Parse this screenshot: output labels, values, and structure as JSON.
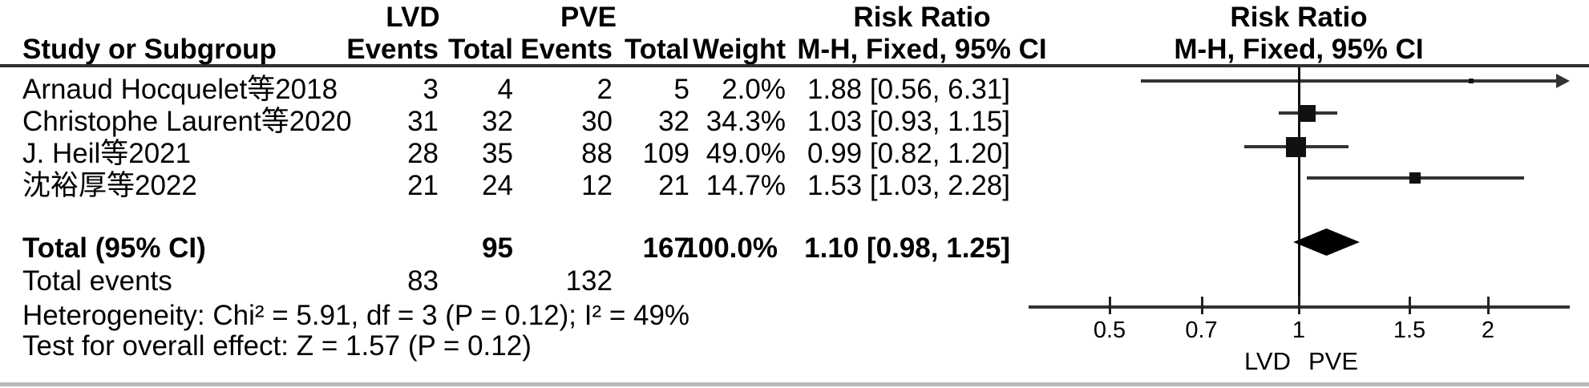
{
  "colors": {
    "text": "#000000",
    "line": "#333333",
    "marker": "#111111",
    "diamond": "#000000",
    "header_rule": "#2f2f2f",
    "bottom_border": "#b9b9b9"
  },
  "header": {
    "group1": "LVD",
    "group2": "PVE",
    "study_col": "Study or Subgroup",
    "events_col": "Events",
    "total_col": "Total",
    "events_col2": "Events",
    "total_col2": "Total",
    "weight_col": "Weight",
    "rr_title": "Risk Ratio",
    "rr_subtitle": "M-H, Fixed, 95% CI",
    "plot_title": "Risk Ratio",
    "plot_subtitle": "M-H, Fixed, 95% CI"
  },
  "footer": {
    "total_label": "Total (95% CI)",
    "total_events_label": "Total events",
    "heterogeneity": "Heterogeneity: Chi² = 5.91, df = 3 (P = 0.12); I² = 49%",
    "overall_effect": "Test for overall effect: Z = 1.57 (P = 0.12)"
  },
  "chart_data": {
    "type": "forest",
    "measure": "Risk Ratio",
    "method": "M-H, Fixed, 95% CI",
    "x_scale": "log",
    "x_ticks": [
      0.5,
      0.7,
      1,
      1.5,
      2
    ],
    "x_range": [
      0.372,
      2.7
    ],
    "favours_left": "LVD",
    "favours_right": "PVE",
    "studies": [
      {
        "study": "Arnaud Hocquelet等2018",
        "e1": "3",
        "t1": "4",
        "e2": "2",
        "t2": "5",
        "weight": "2.0%",
        "rr_text": "1.88 [0.56, 6.31]",
        "rr": 1.88,
        "lo": 0.56,
        "hi": 6.31,
        "wpct": 2.0
      },
      {
        "study": "Christophe Laurent等2020",
        "e1": "31",
        "t1": "32",
        "e2": "30",
        "t2": "32",
        "weight": "34.3%",
        "rr_text": "1.03 [0.93, 1.15]",
        "rr": 1.03,
        "lo": 0.93,
        "hi": 1.15,
        "wpct": 34.3
      },
      {
        "study": "J. Heil等2021",
        "e1": "28",
        "t1": "35",
        "e2": "88",
        "t2": "109",
        "weight": "49.0%",
        "rr_text": "0.99 [0.82, 1.20]",
        "rr": 0.99,
        "lo": 0.82,
        "hi": 1.2,
        "wpct": 49.0
      },
      {
        "study": "沈裕厚等2022",
        "e1": "21",
        "t1": "24",
        "e2": "12",
        "t2": "21",
        "weight": "14.7%",
        "rr_text": "1.53 [1.03, 2.28]",
        "rr": 1.53,
        "lo": 1.03,
        "hi": 2.28,
        "wpct": 14.7
      }
    ],
    "total": {
      "t1": "95",
      "t2": "167",
      "weight": "100.0%",
      "rr_text": "1.10 [0.98, 1.25]",
      "rr": 1.1,
      "lo": 0.98,
      "hi": 1.25
    },
    "total_events": {
      "e1": "83",
      "e2": "132"
    }
  }
}
